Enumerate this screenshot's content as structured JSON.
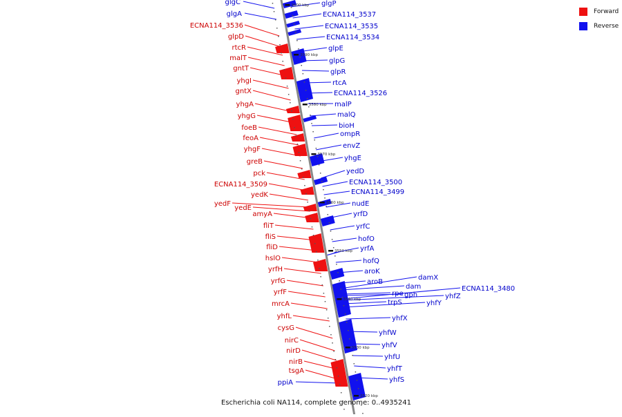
{
  "legend": {
    "forward": {
      "label": "Forward",
      "color": "#ee1111"
    },
    "reverse": {
      "label": "Reverse",
      "color": "#1111ee"
    }
  },
  "caption": "Escherichia coli NA114, complete genome: 0..4935241",
  "colors": {
    "forward": "#ee1111",
    "reverse": "#1111ee",
    "backbone": "#888888",
    "text_red": "#cc0000",
    "text_blue": "#0000cc"
  },
  "tick_labels": [
    "3600 kbp",
    "3590 kbp",
    "3580 kbp",
    "3570 kbp",
    "3560 kbp",
    "3550 kbp",
    "3540 kbp",
    "3530 kbp",
    "3520 kbp"
  ],
  "forward_genes": [
    "ECNA114_3536",
    "glpD",
    "rtcR",
    "malT",
    "gntT",
    "yhgI",
    "gntX",
    "yhgA",
    "yhgG",
    "foeB",
    "feoA",
    "yhgF",
    "greB",
    "pck",
    "ECNA114_3509",
    "yedK",
    "yedF",
    "yedE",
    "amyA",
    "fliT",
    "fliS",
    "fliD",
    "hslO",
    "yrfH",
    "yrfG",
    "yrfF",
    "mrcA",
    "yhfL",
    "cysG",
    "nirC",
    "nirD",
    "nirB",
    "tsgA"
  ],
  "reverse_genes": [
    "glgC",
    "glgA",
    "glgP",
    "ECNA114_3537",
    "ECNA114_3535",
    "ECNA114_3534",
    "glpE",
    "glpG",
    "glpR",
    "rtcA",
    "ECNA114_3526",
    "malP",
    "malQ",
    "bioH",
    "ompR",
    "envZ",
    "yhgE",
    "yedD",
    "ECNA114_3500",
    "ECNA114_3499",
    "nudE",
    "yrfD",
    "yrfC",
    "hofO",
    "yrfA",
    "hofQ",
    "aroK",
    "aroB",
    "damX",
    "dam",
    "rpe",
    "gph",
    "ECNA114_3480",
    "yhfZ",
    "trpS",
    "yhfY",
    "yhfX",
    "yhfW",
    "yhfV",
    "yhfU",
    "yhfT",
    "yhfS",
    "ppiA"
  ]
}
